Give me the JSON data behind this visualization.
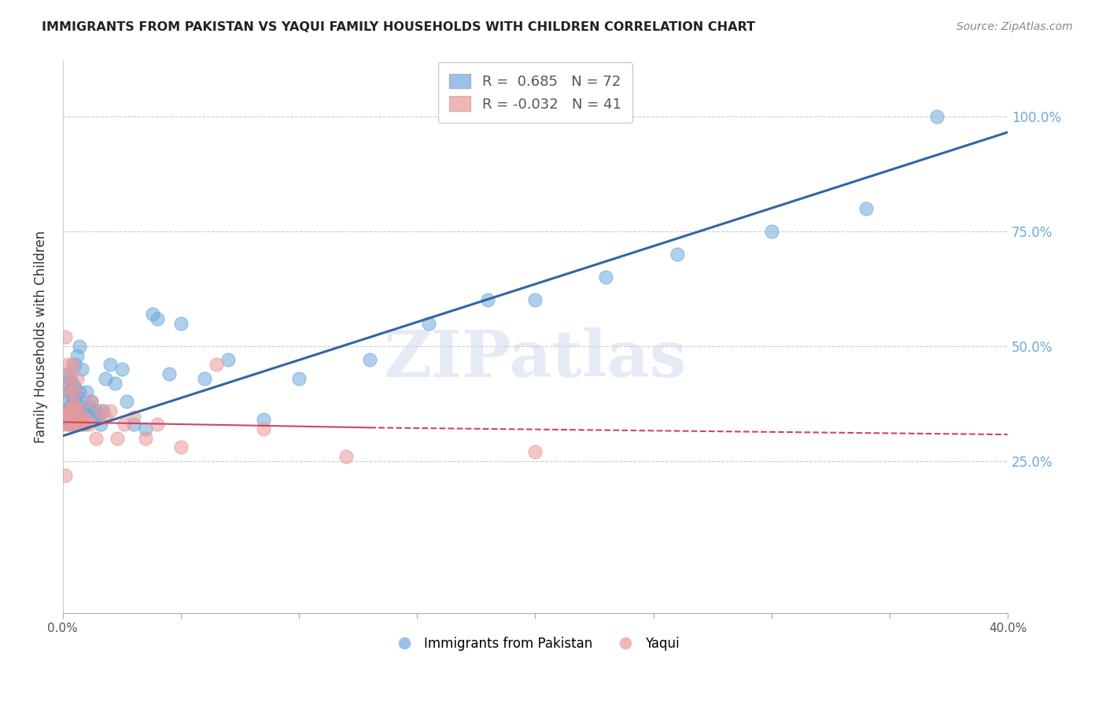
{
  "title": "IMMIGRANTS FROM PAKISTAN VS YAQUI FAMILY HOUSEHOLDS WITH CHILDREN CORRELATION CHART",
  "source": "Source: ZipAtlas.com",
  "ylabel": "Family Households with Children",
  "ytick_labels": [
    "100.0%",
    "75.0%",
    "50.0%",
    "25.0%"
  ],
  "ytick_values": [
    1.0,
    0.75,
    0.5,
    0.25
  ],
  "xlim": [
    0.0,
    0.4
  ],
  "ylim": [
    -0.08,
    1.12
  ],
  "legend1_R": "0.685",
  "legend1_N": "72",
  "legend2_R": "-0.032",
  "legend2_N": "41",
  "blue_color": "#6fa8dc",
  "pink_color": "#ea9999",
  "blue_line_color": "#3465a4",
  "pink_line_color": "#cc4466",
  "watermark_text": "ZIPatlas",
  "legend_label1": "Immigrants from Pakistan",
  "legend_label2": "Yaqui",
  "blue_line_x": [
    0.0,
    0.4
  ],
  "blue_line_y": [
    0.305,
    0.965
  ],
  "pink_line_x": [
    0.0,
    0.4
  ],
  "pink_line_y": [
    0.335,
    0.308
  ],
  "blue_x": [
    0.0005,
    0.001,
    0.001,
    0.001,
    0.0015,
    0.002,
    0.002,
    0.002,
    0.002,
    0.0025,
    0.003,
    0.003,
    0.003,
    0.003,
    0.003,
    0.0035,
    0.004,
    0.004,
    0.004,
    0.004,
    0.0045,
    0.005,
    0.005,
    0.005,
    0.005,
    0.005,
    0.006,
    0.006,
    0.006,
    0.006,
    0.007,
    0.007,
    0.007,
    0.007,
    0.008,
    0.008,
    0.008,
    0.009,
    0.009,
    0.01,
    0.01,
    0.011,
    0.012,
    0.013,
    0.014,
    0.015,
    0.016,
    0.017,
    0.018,
    0.02,
    0.022,
    0.025,
    0.027,
    0.03,
    0.035,
    0.038,
    0.04,
    0.045,
    0.05,
    0.06,
    0.07,
    0.085,
    0.1,
    0.13,
    0.155,
    0.18,
    0.2,
    0.23,
    0.26,
    0.3,
    0.34,
    0.37
  ],
  "blue_y": [
    0.345,
    0.36,
    0.38,
    0.42,
    0.35,
    0.33,
    0.36,
    0.4,
    0.44,
    0.34,
    0.33,
    0.35,
    0.37,
    0.4,
    0.43,
    0.35,
    0.34,
    0.36,
    0.39,
    0.42,
    0.34,
    0.33,
    0.35,
    0.38,
    0.41,
    0.46,
    0.33,
    0.36,
    0.39,
    0.48,
    0.34,
    0.36,
    0.4,
    0.5,
    0.34,
    0.37,
    0.45,
    0.33,
    0.36,
    0.35,
    0.4,
    0.37,
    0.38,
    0.34,
    0.36,
    0.35,
    0.33,
    0.36,
    0.43,
    0.46,
    0.42,
    0.45,
    0.38,
    0.33,
    0.32,
    0.57,
    0.56,
    0.44,
    0.55,
    0.43,
    0.47,
    0.34,
    0.43,
    0.47,
    0.55,
    0.6,
    0.6,
    0.65,
    0.7,
    0.75,
    0.8,
    1.0
  ],
  "pink_x": [
    0.0005,
    0.001,
    0.001,
    0.001,
    0.0015,
    0.002,
    0.002,
    0.002,
    0.003,
    0.003,
    0.003,
    0.003,
    0.004,
    0.004,
    0.004,
    0.005,
    0.005,
    0.005,
    0.006,
    0.006,
    0.007,
    0.007,
    0.008,
    0.009,
    0.01,
    0.011,
    0.012,
    0.014,
    0.016,
    0.018,
    0.02,
    0.023,
    0.026,
    0.03,
    0.035,
    0.04,
    0.05,
    0.065,
    0.085,
    0.12,
    0.2
  ],
  "pink_y": [
    0.33,
    0.22,
    0.35,
    0.52,
    0.345,
    0.36,
    0.42,
    0.46,
    0.33,
    0.36,
    0.4,
    0.44,
    0.33,
    0.37,
    0.46,
    0.33,
    0.37,
    0.4,
    0.35,
    0.43,
    0.33,
    0.36,
    0.335,
    0.33,
    0.34,
    0.33,
    0.38,
    0.3,
    0.36,
    0.345,
    0.36,
    0.3,
    0.33,
    0.345,
    0.3,
    0.33,
    0.28,
    0.46,
    0.32,
    0.26,
    0.27
  ]
}
